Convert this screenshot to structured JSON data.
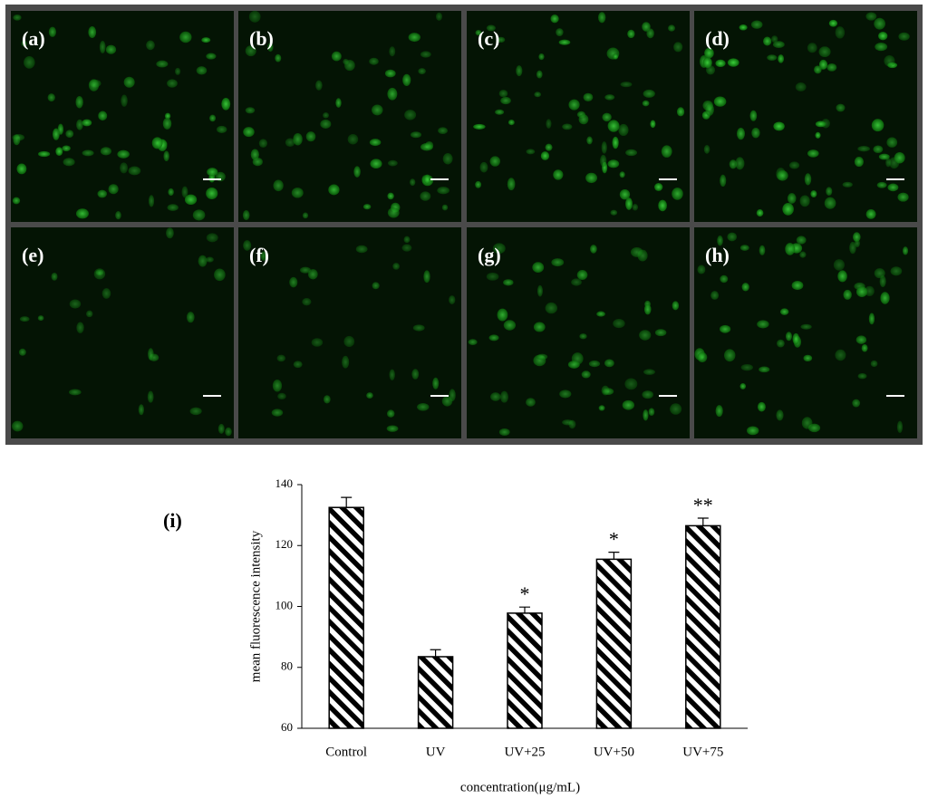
{
  "panels": [
    "(a)",
    "(b)",
    "(c)",
    "(d)",
    "(e)",
    "(f)",
    "(g)",
    "(h)"
  ],
  "chart_data": {
    "type": "bar",
    "panel_label": "(i)",
    "y_label": "mean fluorescence intensity",
    "x_label": "concentration(μg/mL)",
    "categories": [
      "Control",
      "UV",
      "UV+25",
      "UV+50",
      "UV+75"
    ],
    "values": [
      132.5,
      83.5,
      97.8,
      115.5,
      126.5
    ],
    "errors": [
      3.3,
      2.3,
      2.0,
      2.3,
      2.5
    ],
    "annotations": [
      {
        "category": "UV+25",
        "text": "*"
      },
      {
        "category": "UV+50",
        "text": "*"
      },
      {
        "category": "UV+75",
        "text": "**"
      }
    ],
    "ylim": [
      60,
      140
    ],
    "yticks": [
      60,
      80,
      100,
      120,
      140
    ],
    "color": "#000000",
    "hatch": true
  }
}
